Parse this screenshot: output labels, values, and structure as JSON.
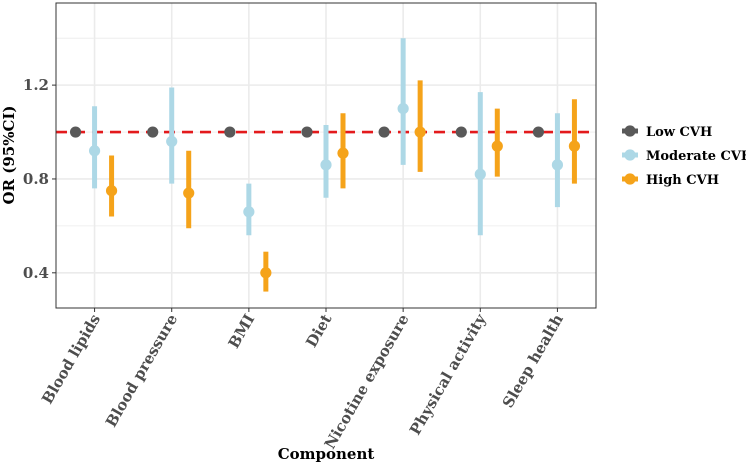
{
  "chart_data": {
    "type": "scatter",
    "subtype": "forest-plot",
    "title": "",
    "xlabel": "Component",
    "ylabel": "OR (95%CI)",
    "ylim": [
      0.25,
      1.55
    ],
    "yticks": [
      0.4,
      0.8,
      1.2
    ],
    "ytick_labels": [
      "0.4",
      "0.8",
      "1.2"
    ],
    "reference_line": 1.0,
    "grid": true,
    "legend_position": "right",
    "categories": [
      "Blood lipids",
      "Blood pressure",
      "BMI",
      "Diet",
      "Nicotine exposure",
      "Physical activity",
      "Sleep health"
    ],
    "series": [
      {
        "name": "Low CVH",
        "color": "#595959",
        "values": [
          1.0,
          1.0,
          1.0,
          1.0,
          1.0,
          1.0,
          1.0
        ],
        "lower": [
          1.0,
          1.0,
          1.0,
          1.0,
          1.0,
          1.0,
          1.0
        ],
        "upper": [
          1.0,
          1.0,
          1.0,
          1.0,
          1.0,
          1.0,
          1.0
        ]
      },
      {
        "name": "Moderate CVH",
        "color": "#add8e6",
        "values": [
          0.92,
          0.96,
          0.66,
          0.86,
          1.1,
          0.82,
          0.86
        ],
        "lower": [
          0.76,
          0.78,
          0.56,
          0.72,
          0.86,
          0.56,
          0.68
        ],
        "upper": [
          1.11,
          1.19,
          0.78,
          1.03,
          1.4,
          1.17,
          1.08
        ]
      },
      {
        "name": "High CVH",
        "color": "#f5a31a",
        "values": [
          0.75,
          0.74,
          0.4,
          0.91,
          1.0,
          0.94,
          0.94
        ],
        "lower": [
          0.64,
          0.59,
          0.32,
          0.76,
          0.83,
          0.81,
          0.78
        ],
        "upper": [
          0.9,
          0.92,
          0.49,
          1.08,
          1.22,
          1.1,
          1.14
        ]
      }
    ],
    "colors": {
      "reference_line": "#e31a1c",
      "grid": "#ebebeb",
      "panel_border": "#333333"
    }
  }
}
